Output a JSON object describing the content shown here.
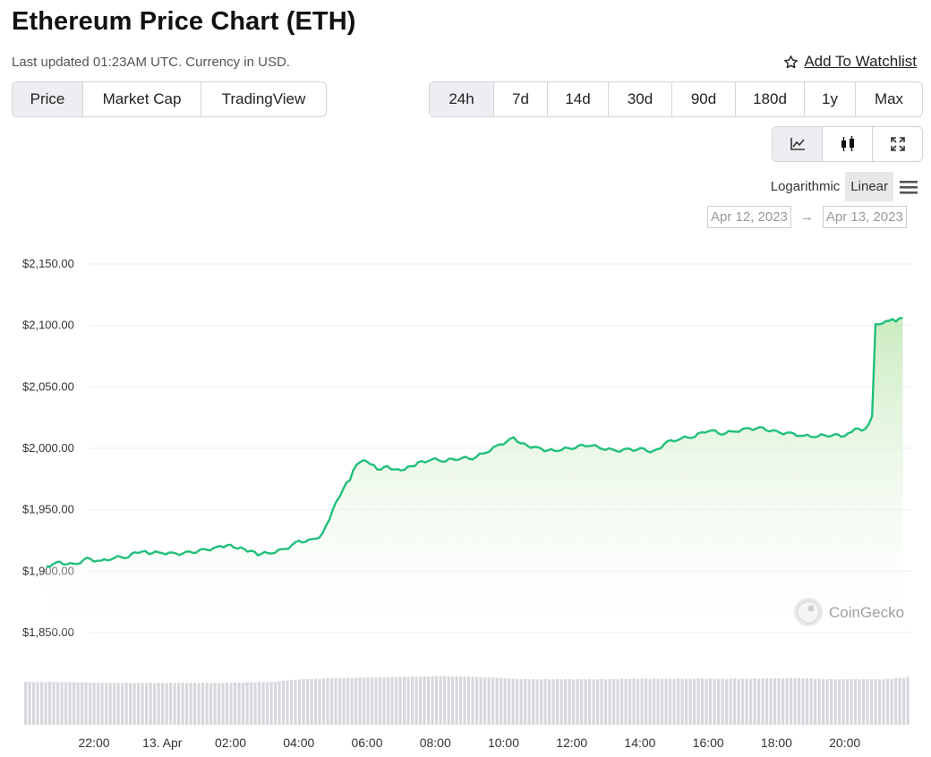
{
  "header": {
    "title": "Ethereum Price Chart (ETH)",
    "subtitle": "Last updated 01:23AM UTC. Currency in USD.",
    "watchlist_label": "Add To Watchlist"
  },
  "type_tabs": [
    {
      "label": "Price",
      "active": true
    },
    {
      "label": "Market Cap",
      "active": false
    },
    {
      "label": "TradingView",
      "active": false
    }
  ],
  "range_tabs": [
    {
      "label": "24h",
      "active": true
    },
    {
      "label": "7d",
      "active": false
    },
    {
      "label": "14d",
      "active": false
    },
    {
      "label": "30d",
      "active": false
    },
    {
      "label": "90d",
      "active": false
    },
    {
      "label": "180d",
      "active": false
    },
    {
      "label": "1y",
      "active": false
    },
    {
      "label": "Max",
      "active": false
    }
  ],
  "view_tabs": [
    {
      "icon": "line-chart-icon",
      "active": true
    },
    {
      "icon": "candlestick-icon",
      "active": false
    },
    {
      "icon": "fullscreen-icon",
      "active": false
    }
  ],
  "scale": {
    "logarithmic_label": "Logarithmic",
    "linear_label": "Linear",
    "active": "linear"
  },
  "date_range": {
    "from": "Apr 12, 2023",
    "to": "Apr 13, 2023"
  },
  "watermark": "CoinGecko",
  "colors": {
    "line": "#20c07a",
    "fill": "#cdebc4",
    "volume": "#d7d8dd",
    "grid": "#eeeeee"
  },
  "chart_data": {
    "type": "line",
    "x_hours_label": [
      "22:00",
      "13. Apr",
      "02:00",
      "04:00",
      "06:00",
      "08:00",
      "10:00",
      "12:00",
      "14:00",
      "16:00",
      "18:00",
      "20:00"
    ],
    "y_tick_labels": [
      "$2,150.00",
      "$2,100.00",
      "$2,050.00",
      "$2,000.00",
      "$1,950.00",
      "$1,900.00",
      "$1,850.00"
    ],
    "y_ticks": [
      2150,
      2100,
      2050,
      2000,
      1950,
      1900,
      1850
    ],
    "ylim": [
      1850,
      2150
    ],
    "x_range_hours": [
      -3.4,
      20.8
    ],
    "x_tick_hours": [
      -2,
      0,
      2,
      4,
      6,
      8,
      10,
      12,
      14,
      16,
      18,
      20
    ],
    "grid": true,
    "price_points": [
      [
        -3.4,
        1904
      ],
      [
        -3.0,
        1907
      ],
      [
        -2.6,
        1905
      ],
      [
        -2.2,
        1910
      ],
      [
        -1.8,
        1908
      ],
      [
        -1.4,
        1911
      ],
      [
        -1.0,
        1912
      ],
      [
        -0.7,
        1916
      ],
      [
        -0.4,
        1915
      ],
      [
        0.0,
        1915
      ],
      [
        0.4,
        1914
      ],
      [
        0.8,
        1915
      ],
      [
        1.2,
        1917
      ],
      [
        1.6,
        1919
      ],
      [
        1.9,
        1921
      ],
      [
        2.2,
        1919
      ],
      [
        2.5,
        1917
      ],
      [
        2.8,
        1914
      ],
      [
        3.2,
        1915
      ],
      [
        3.6,
        1918
      ],
      [
        4.0,
        1924
      ],
      [
        4.4,
        1925
      ],
      [
        4.7,
        1930
      ],
      [
        5.0,
        1950
      ],
      [
        5.3,
        1967
      ],
      [
        5.5,
        1975
      ],
      [
        5.7,
        1988
      ],
      [
        6.0,
        1990
      ],
      [
        6.3,
        1983
      ],
      [
        6.6,
        1985
      ],
      [
        6.9,
        1982
      ],
      [
        7.2,
        1984
      ],
      [
        7.5,
        1988
      ],
      [
        7.9,
        1991
      ],
      [
        8.3,
        1990
      ],
      [
        8.7,
        1992
      ],
      [
        9.1,
        1992
      ],
      [
        9.5,
        1997
      ],
      [
        9.9,
        2003
      ],
      [
        10.3,
        2008
      ],
      [
        10.6,
        2003
      ],
      [
        11.0,
        2000
      ],
      [
        11.3,
        1998
      ],
      [
        11.7,
        1999
      ],
      [
        12.1,
        2001
      ],
      [
        12.5,
        2003
      ],
      [
        12.9,
        2000
      ],
      [
        13.3,
        1998
      ],
      [
        13.7,
        1999
      ],
      [
        14.1,
        1999
      ],
      [
        14.4,
        1997
      ],
      [
        14.8,
        2005
      ],
      [
        15.2,
        2008
      ],
      [
        15.6,
        2010
      ],
      [
        16.0,
        2015
      ],
      [
        16.4,
        2012
      ],
      [
        16.8,
        2014
      ],
      [
        17.2,
        2016
      ],
      [
        17.6,
        2016
      ],
      [
        18.0,
        2013
      ],
      [
        18.4,
        2012
      ],
      [
        18.8,
        2010
      ],
      [
        19.2,
        2010
      ],
      [
        19.6,
        2011
      ],
      [
        20.0,
        2010
      ],
      [
        20.1,
        2013
      ],
      [
        20.4,
        2016
      ],
      [
        20.6,
        2015
      ],
      [
        20.8,
        2026
      ],
      [
        20.9,
        2100
      ],
      [
        21.1,
        2101
      ],
      [
        21.3,
        2104
      ],
      [
        21.5,
        2104
      ],
      [
        21.7,
        2106
      ]
    ],
    "volume_level": [
      0.5,
      0.5,
      0.49,
      0.48,
      0.48,
      0.48,
      0.48,
      0.48,
      0.49,
      0.5,
      0.55,
      0.57,
      0.58,
      0.59,
      0.6,
      0.61,
      0.6,
      0.58,
      0.55,
      0.55,
      0.55,
      0.55,
      0.56,
      0.56,
      0.56,
      0.56,
      0.56,
      0.57,
      0.57,
      0.55,
      0.55,
      0.55,
      0.6
    ]
  }
}
